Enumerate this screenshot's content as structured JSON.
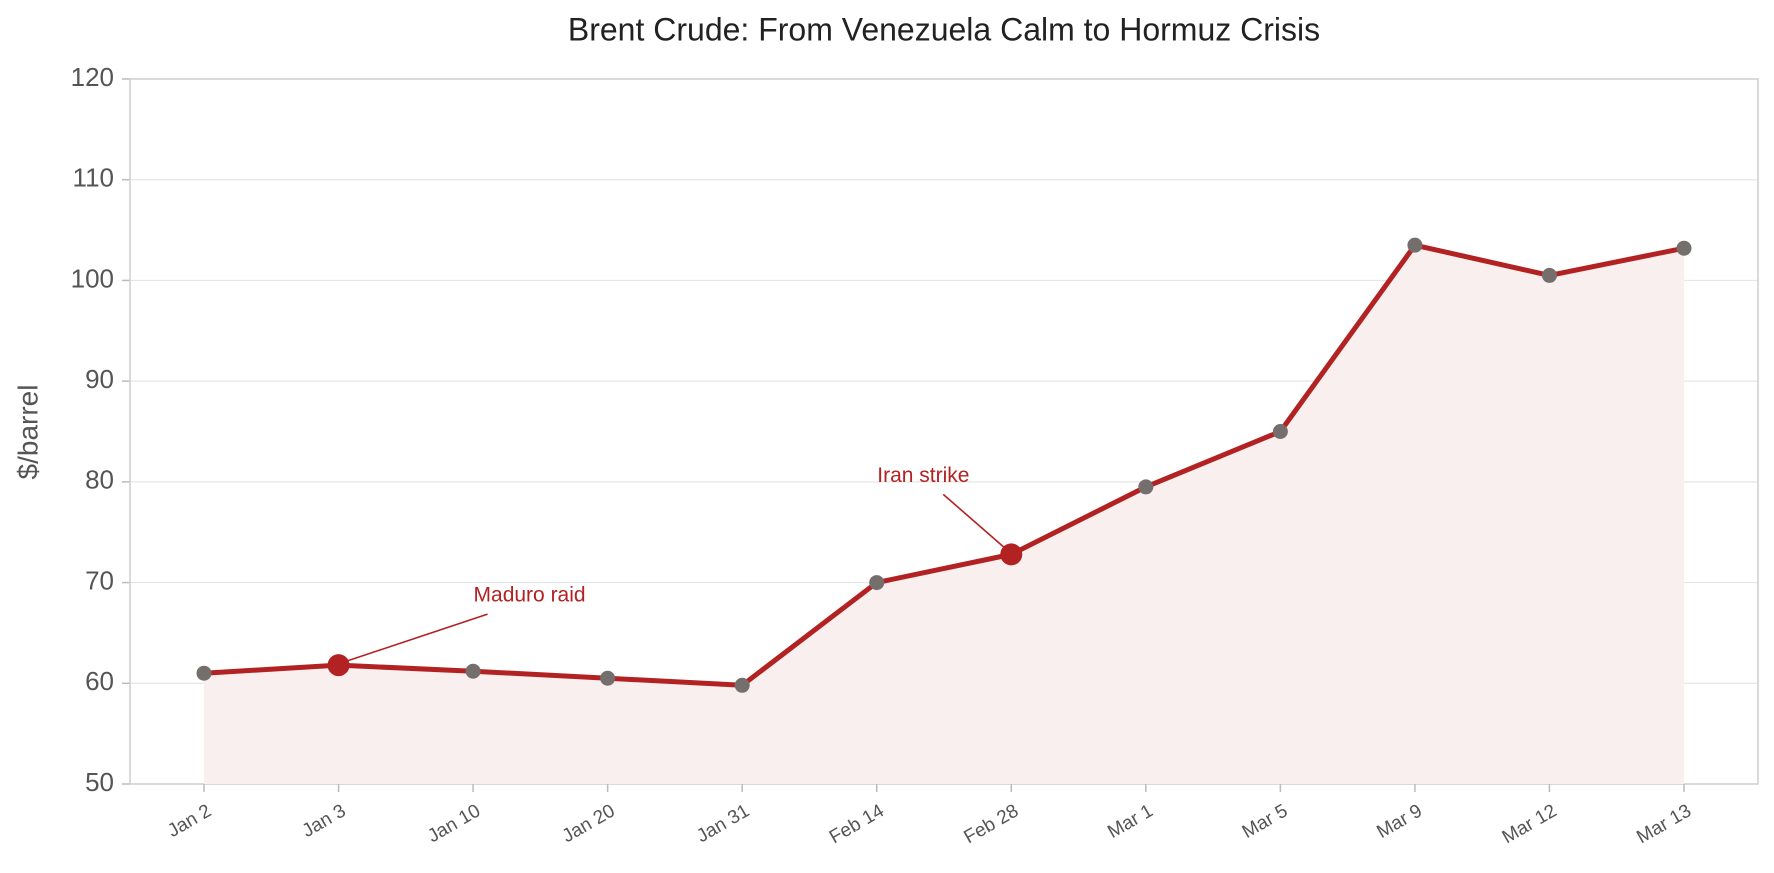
{
  "chart_data": {
    "type": "line",
    "title": "Brent Crude: From Venezuela Calm to Hormuz Crisis",
    "y_label": "$/barrel",
    "categories": [
      "Jan 2",
      "Jan 3",
      "Jan 10",
      "Jan 20",
      "Jan 31",
      "Feb 14",
      "Feb 28",
      "Mar 1",
      "Mar 5",
      "Mar 9",
      "Mar 12",
      "Mar 13"
    ],
    "series": [
      {
        "name": "Brent",
        "color": "#b22222",
        "values": [
          61.0,
          61.8,
          61.2,
          60.5,
          59.8,
          70.0,
          72.8,
          79.5,
          85.0,
          103.5,
          100.5,
          103.2
        ]
      }
    ],
    "marker_color": "#746e6c",
    "fill_color": "#f8efee",
    "ylim": [
      50,
      120
    ],
    "yticks": [
      50,
      60,
      70,
      80,
      90,
      100,
      110,
      120
    ],
    "grid": true,
    "annotations": [
      {
        "text": "Maduro raid",
        "x": "Jan 3"
      },
      {
        "text": "Iran strike",
        "x": "Feb 28"
      }
    ]
  }
}
